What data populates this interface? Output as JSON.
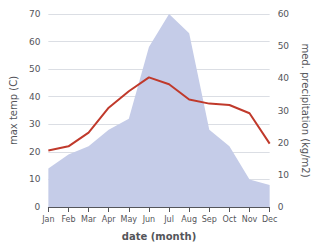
{
  "chart_data": {
    "type": "line",
    "xlabel": "date (month)",
    "ylabel": "max temp (C)",
    "y2label": "med. precipitation (kg/m2)",
    "categories": [
      "Jan",
      "Feb",
      "Mar",
      "Apr",
      "May",
      "Jun",
      "Jul",
      "Aug",
      "Sep",
      "Oct",
      "Nov",
      "Dec"
    ],
    "series": [
      {
        "type": "area",
        "color": "#c5cce8",
        "values": [
          14,
          19,
          22,
          28,
          32,
          58,
          70,
          63,
          28,
          22,
          10,
          8
        ]
      },
      {
        "type": "line",
        "color": "#c0392b",
        "values": [
          20.5,
          22.0,
          27.0,
          36.0,
          42.0,
          47.0,
          44.5,
          39.0,
          37.5,
          37.0,
          34.0,
          23.0
        ]
      }
    ],
    "ylim": [
      0,
      70
    ],
    "yticks": [
      0,
      10,
      20,
      30,
      40,
      50,
      60,
      70
    ],
    "y2lim": [
      0,
      60
    ],
    "y2ticks": [
      0,
      10,
      20,
      30,
      40,
      50,
      60
    ],
    "grid": true
  }
}
